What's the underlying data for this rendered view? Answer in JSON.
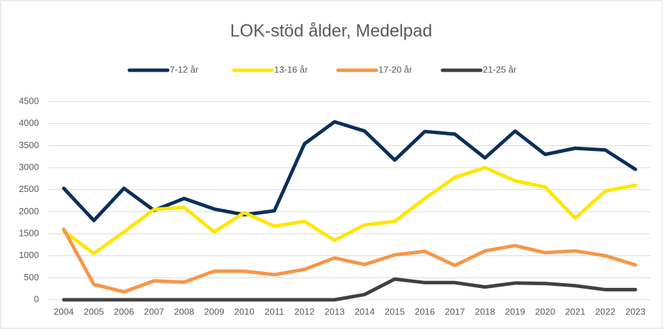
{
  "chart_data": {
    "type": "line",
    "title": "LOK-stöd ålder, Medelpad",
    "categories": [
      "2004",
      "2005",
      "2006",
      "2007",
      "2008",
      "2009",
      "2010",
      "2011",
      "2012",
      "2013",
      "2014",
      "2015",
      "2016",
      "2017",
      "2018",
      "2019",
      "2020",
      "2021",
      "2022",
      "2023"
    ],
    "series": [
      {
        "name": "7-12 år",
        "color": "#0b2f5a",
        "values": [
          2530,
          1800,
          2530,
          2030,
          2300,
          2060,
          1930,
          2020,
          3540,
          4040,
          3830,
          3170,
          3820,
          3760,
          3220,
          3830,
          3300,
          3440,
          3400,
          2960
        ]
      },
      {
        "name": "13-16 år",
        "color": "#ffe600",
        "values": [
          1560,
          1050,
          1540,
          2050,
          2100,
          1540,
          1980,
          1670,
          1780,
          1350,
          1700,
          1780,
          2300,
          2780,
          3000,
          2700,
          2560,
          1850,
          2470,
          2600
        ]
      },
      {
        "name": "17-20 år",
        "color": "#f79646",
        "values": [
          1600,
          350,
          180,
          430,
          400,
          650,
          650,
          570,
          690,
          950,
          800,
          1020,
          1100,
          780,
          1110,
          1230,
          1070,
          1110,
          1000,
          790
        ]
      },
      {
        "name": "21-25 år",
        "color": "#404040",
        "values": [
          0,
          0,
          0,
          0,
          0,
          0,
          0,
          0,
          0,
          0,
          120,
          470,
          390,
          390,
          290,
          380,
          370,
          320,
          230,
          230
        ]
      }
    ],
    "ylim": [
      0,
      4500
    ],
    "yticks": [
      0,
      500,
      1000,
      1500,
      2000,
      2500,
      3000,
      3500,
      4000,
      4500
    ],
    "grid": true,
    "legend": "top"
  }
}
